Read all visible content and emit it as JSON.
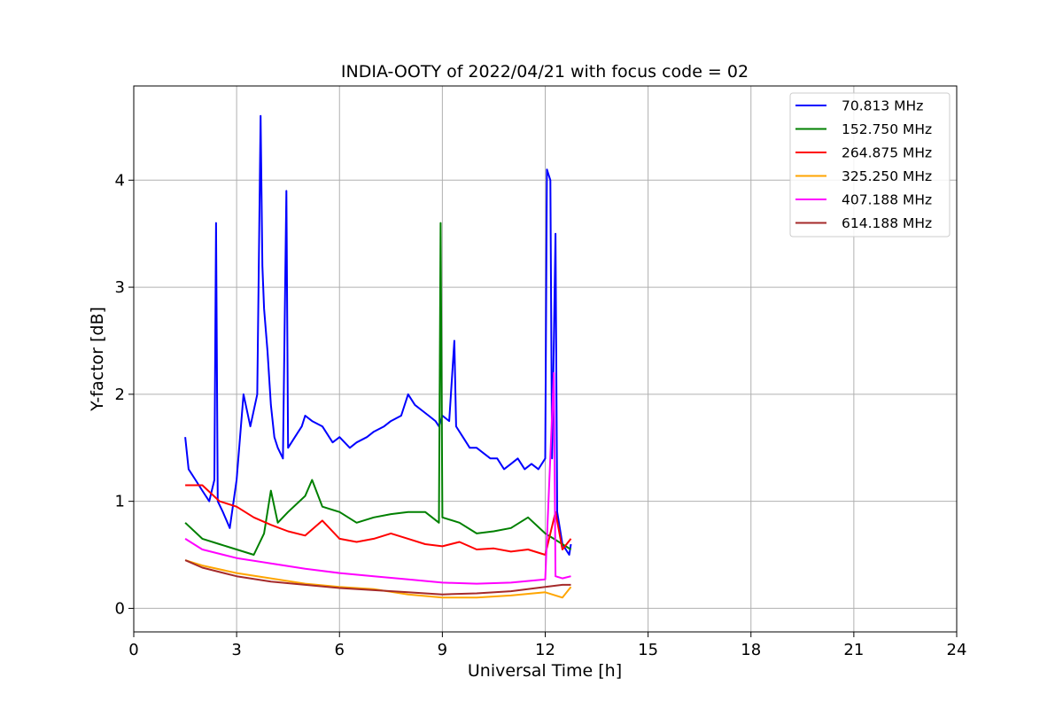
{
  "chart_data": {
    "type": "line",
    "title": "INDIA-OOTY of 2022/04/21 with focus code = 02",
    "xlabel": "Universal Time [h]",
    "ylabel": "Y-factor [dB]",
    "xlim": [
      0,
      24
    ],
    "ylim": [
      -0.22,
      4.88
    ],
    "xticks": [
      0,
      3,
      6,
      9,
      12,
      15,
      18,
      21,
      24
    ],
    "xtick_labels": [
      "0",
      "3",
      "6",
      "9",
      "12",
      "15",
      "18",
      "21",
      "24"
    ],
    "yticks": [
      0,
      1,
      2,
      3,
      4
    ],
    "ytick_labels": [
      "0",
      "1",
      "2",
      "3",
      "4"
    ],
    "grid": true,
    "legend_position": "top-right",
    "series": [
      {
        "name": " 70.813 MHz",
        "color": "#0000ff",
        "x": [
          1.5,
          1.6,
          1.8,
          2.0,
          2.2,
          2.35,
          2.4,
          2.45,
          2.6,
          2.8,
          3.0,
          3.1,
          3.2,
          3.4,
          3.6,
          3.7,
          3.75,
          3.8,
          3.9,
          4.0,
          4.1,
          4.2,
          4.35,
          4.45,
          4.5,
          4.7,
          4.9,
          5.0,
          5.2,
          5.5,
          5.8,
          6.0,
          6.3,
          6.5,
          6.8,
          7.0,
          7.3,
          7.5,
          7.8,
          8.0,
          8.2,
          8.4,
          8.6,
          8.8,
          8.9,
          9.0,
          9.2,
          9.35,
          9.4,
          9.6,
          9.8,
          10.0,
          10.2,
          10.4,
          10.6,
          10.8,
          11.0,
          11.2,
          11.4,
          11.6,
          11.8,
          12.0,
          12.05,
          12.15,
          12.2,
          12.3,
          12.35,
          12.5,
          12.7,
          12.75
        ],
        "values": [
          1.6,
          1.3,
          1.2,
          1.1,
          1.0,
          1.2,
          3.6,
          1.0,
          0.9,
          0.75,
          1.2,
          1.6,
          2.0,
          1.7,
          2.0,
          4.6,
          3.2,
          2.8,
          2.4,
          1.9,
          1.6,
          1.5,
          1.4,
          3.9,
          1.5,
          1.6,
          1.7,
          1.8,
          1.75,
          1.7,
          1.55,
          1.6,
          1.5,
          1.55,
          1.6,
          1.65,
          1.7,
          1.75,
          1.8,
          2.0,
          1.9,
          1.85,
          1.8,
          1.75,
          1.7,
          1.8,
          1.75,
          2.5,
          1.7,
          1.6,
          1.5,
          1.5,
          1.45,
          1.4,
          1.4,
          1.3,
          1.35,
          1.4,
          1.3,
          1.35,
          1.3,
          1.4,
          4.1,
          4.0,
          1.4,
          3.5,
          0.9,
          0.6,
          0.5,
          0.6
        ]
      },
      {
        "name": "152.750 MHz",
        "color": "#008000",
        "x": [
          1.5,
          2.0,
          2.5,
          3.0,
          3.5,
          3.8,
          4.0,
          4.2,
          4.5,
          5.0,
          5.2,
          5.5,
          6.0,
          6.5,
          7.0,
          7.5,
          8.0,
          8.5,
          8.9,
          8.95,
          9.0,
          9.5,
          10.0,
          10.5,
          11.0,
          11.5,
          12.0,
          12.5,
          12.75
        ],
        "values": [
          0.8,
          0.65,
          0.6,
          0.55,
          0.5,
          0.7,
          1.1,
          0.8,
          0.9,
          1.05,
          1.2,
          0.95,
          0.9,
          0.8,
          0.85,
          0.88,
          0.9,
          0.9,
          0.8,
          3.6,
          0.85,
          0.8,
          0.7,
          0.72,
          0.75,
          0.85,
          0.7,
          0.6,
          0.55
        ]
      },
      {
        "name": "264.875 MHz",
        "color": "#ff0000",
        "x": [
          1.5,
          2.0,
          2.5,
          3.0,
          3.5,
          4.0,
          4.5,
          5.0,
          5.5,
          6.0,
          6.5,
          7.0,
          7.5,
          8.0,
          8.5,
          9.0,
          9.5,
          10.0,
          10.5,
          11.0,
          11.5,
          12.0,
          12.3,
          12.5,
          12.75
        ],
        "values": [
          1.15,
          1.15,
          1.0,
          0.95,
          0.85,
          0.78,
          0.72,
          0.68,
          0.82,
          0.65,
          0.62,
          0.65,
          0.7,
          0.65,
          0.6,
          0.58,
          0.62,
          0.55,
          0.56,
          0.53,
          0.55,
          0.5,
          0.9,
          0.55,
          0.65
        ]
      },
      {
        "name": "325.250 MHz",
        "color": "#ffa500",
        "x": [
          1.5,
          2.0,
          3.0,
          4.0,
          5.0,
          6.0,
          7.0,
          8.0,
          9.0,
          10.0,
          11.0,
          12.0,
          12.5,
          12.75
        ],
        "values": [
          0.45,
          0.4,
          0.33,
          0.28,
          0.23,
          0.2,
          0.18,
          0.13,
          0.1,
          0.1,
          0.12,
          0.15,
          0.1,
          0.2
        ]
      },
      {
        "name": "407.188 MHz",
        "color": "#ff00ff",
        "x": [
          1.5,
          2.0,
          3.0,
          4.0,
          5.0,
          6.0,
          7.0,
          8.0,
          9.0,
          10.0,
          11.0,
          12.0,
          12.25,
          12.3,
          12.5,
          12.75
        ],
        "values": [
          0.65,
          0.55,
          0.47,
          0.42,
          0.37,
          0.33,
          0.3,
          0.27,
          0.24,
          0.23,
          0.24,
          0.27,
          2.2,
          0.3,
          0.28,
          0.3
        ]
      },
      {
        "name": "614.188 MHz",
        "color": "#a52a2a",
        "x": [
          1.5,
          2.0,
          3.0,
          4.0,
          5.0,
          6.0,
          7.0,
          8.0,
          9.0,
          10.0,
          11.0,
          12.0,
          12.5,
          12.75
        ],
        "values": [
          0.45,
          0.38,
          0.3,
          0.25,
          0.22,
          0.19,
          0.17,
          0.15,
          0.13,
          0.14,
          0.16,
          0.2,
          0.22,
          0.22
        ]
      }
    ]
  }
}
